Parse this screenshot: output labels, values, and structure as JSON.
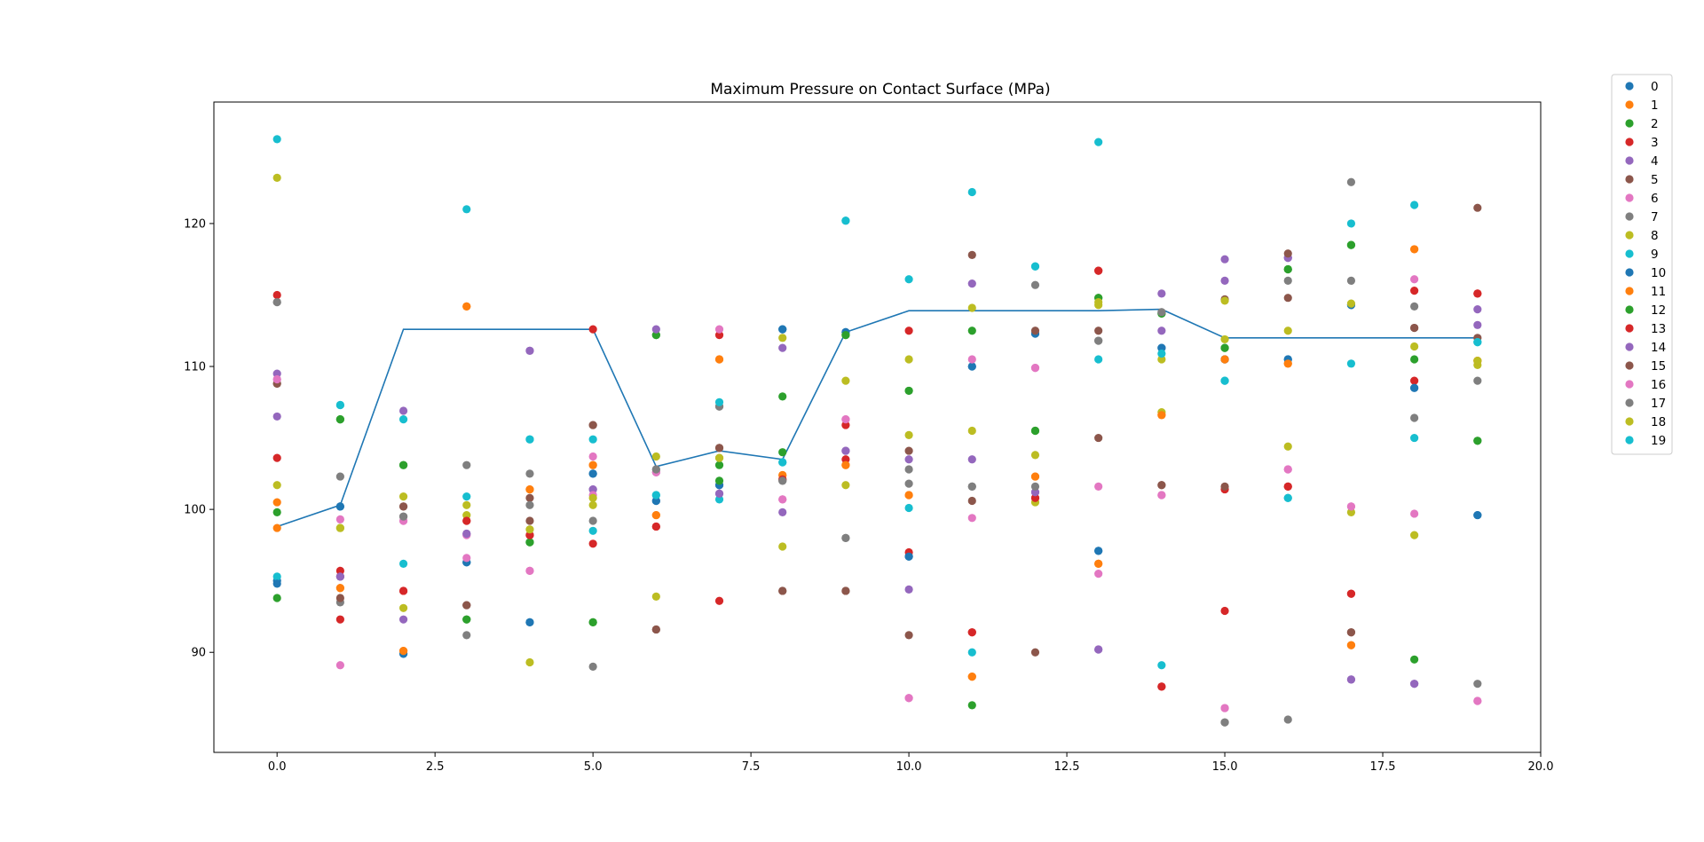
{
  "chart_data": {
    "type": "scatter",
    "title": "Maximum Pressure on Contact Surface (MPa)",
    "xlabel": "",
    "ylabel": "",
    "xlim": [
      -1.0,
      20.0
    ],
    "ylim": [
      83.0,
      128.5
    ],
    "x_ticks": [
      0.0,
      2.5,
      5.0,
      7.5,
      10.0,
      12.5,
      15.0,
      17.5,
      20.0
    ],
    "x_tick_labels": [
      "0.0",
      "2.5",
      "5.0",
      "7.5",
      "10.0",
      "12.5",
      "15.0",
      "17.5",
      "20.0"
    ],
    "y_ticks": [
      90,
      100,
      110,
      120
    ],
    "y_tick_labels": [
      "90",
      "100",
      "110",
      "120"
    ],
    "grid": false,
    "legend_position": "outside-top-right",
    "x": [
      0,
      1,
      2,
      3,
      4,
      5,
      6,
      7,
      8,
      9,
      10,
      11,
      12,
      13,
      14,
      15,
      16,
      17,
      18,
      19
    ],
    "line": {
      "name": "max",
      "color": "#1f77b4",
      "values": [
        98.8,
        100.3,
        112.6,
        112.6,
        112.6,
        112.6,
        103.0,
        104.1,
        103.5,
        112.4,
        113.9,
        113.9,
        113.9,
        113.9,
        114.0,
        112.0,
        112.0,
        112.0,
        112.0,
        112.0
      ]
    },
    "series": [
      {
        "name": "0",
        "color": "#1f77b4",
        "values": [
          95.0,
          100.2,
          89.9,
          96.3,
          92.1,
          102.5,
          100.6,
          101.7,
          112.6,
          112.4,
          96.7,
          110.0,
          112.3,
          97.1,
          111.3,
          110.5,
          110.5,
          114.3,
          108.5,
          99.6
        ]
      },
      {
        "name": "1",
        "color": "#ff7f0e",
        "values": [
          100.5,
          94.5,
          90.1,
          114.2,
          101.4,
          103.1,
          99.6,
          110.5,
          102.4,
          103.1,
          101.0,
          88.3,
          102.3,
          96.2,
          106.6,
          110.5,
          110.2,
          90.5,
          118.2,
          110.4
        ]
      },
      {
        "name": "2",
        "color": "#2ca02c",
        "values": [
          93.8,
          106.3,
          103.1,
          92.3,
          97.7,
          92.1,
          112.2,
          103.1,
          107.9,
          112.2,
          108.3,
          86.3,
          105.5,
          114.8,
          113.7,
          111.3,
          116.8,
          118.5,
          110.5,
          104.8
        ]
      },
      {
        "name": "3",
        "color": "#d62728",
        "values": [
          103.6,
          92.3,
          94.3,
          99.2,
          98.2,
          97.6,
          98.8,
          112.2,
          102.1,
          103.5,
          97.0,
          91.4,
          100.8,
          116.7,
          87.6,
          101.4,
          101.6,
          94.1,
          109.0,
          115.1
        ]
      },
      {
        "name": "4",
        "color": "#9467bd",
        "values": [
          106.5,
          95.3,
          92.3,
          98.3,
          111.1,
          101.4,
          102.6,
          101.1,
          99.8,
          104.1,
          94.4,
          103.5,
          101.2,
          90.2,
          112.5,
          117.5,
          117.6,
          88.1,
          87.8,
          112.9
        ]
      },
      {
        "name": "5",
        "color": "#8c564b",
        "values": [
          108.8,
          95.3,
          100.2,
          93.3,
          100.8,
          105.9,
          91.6,
          104.3,
          94.3,
          94.3,
          91.2,
          117.8,
          90.0,
          105.0,
          101.7,
          114.7,
          114.8,
          91.4,
          112.7,
          112.0
        ]
      },
      {
        "name": "6",
        "color": "#e377c2",
        "values": [
          109.1,
          99.3,
          99.2,
          98.2,
          95.7,
          103.7,
          102.6,
          101.7,
          100.7,
          106.3,
          86.8,
          99.4,
          109.9,
          95.5,
          101.0,
          86.1,
          102.8,
          100.2,
          99.7,
          86.6
        ]
      },
      {
        "name": "7",
        "color": "#7f7f7f",
        "values": [
          114.5,
          93.5,
          99.5,
          91.2,
          100.3,
          99.2,
          102.8,
          107.2,
          102.0,
          98.0,
          101.8,
          101.6,
          115.7,
          111.8,
          113.8,
          85.1,
          116.0,
          122.9,
          114.2,
          109.0
        ]
      },
      {
        "name": "8",
        "color": "#bcbd22",
        "values": [
          123.2,
          98.7,
          93.1,
          99.6,
          89.3,
          100.3,
          93.9,
          103.6,
          97.4,
          101.7,
          105.2,
          105.5,
          100.5,
          114.3,
          106.8,
          111.9,
          104.4,
          99.8,
          98.2,
          110.1
        ]
      },
      {
        "name": "9",
        "color": "#17becf",
        "values": [
          95.3,
          107.3,
          96.2,
          100.9,
          104.9,
          98.5,
          101.0,
          100.7,
          103.3,
          120.2,
          100.1,
          90.0,
          117.0,
          110.5,
          89.1,
          109.0,
          100.8,
          110.2,
          105.0,
          111.7
        ]
      },
      {
        "name": "10",
        "color": "#1f77b4",
        "values": [
          94.8,
          100.2,
          89.9,
          96.3,
          92.1,
          102.5,
          100.6,
          101.7,
          112.6,
          112.4,
          96.7,
          110.0,
          112.3,
          97.1,
          111.3,
          110.5,
          110.5,
          114.3,
          108.5,
          99.6
        ]
      },
      {
        "name": "11",
        "color": "#ff7f0e",
        "values": [
          98.7,
          94.5,
          90.1,
          114.2,
          101.4,
          103.1,
          99.6,
          110.5,
          102.4,
          103.1,
          101.0,
          88.3,
          102.3,
          96.2,
          106.6,
          110.5,
          110.2,
          90.5,
          118.2,
          110.4
        ]
      },
      {
        "name": "12",
        "color": "#2ca02c",
        "values": [
          99.8,
          106.3,
          103.1,
          92.3,
          97.7,
          92.1,
          112.2,
          102.0,
          104.0,
          112.2,
          108.3,
          112.5,
          105.5,
          114.8,
          113.7,
          111.3,
          116.8,
          118.5,
          89.5,
          104.8
        ]
      },
      {
        "name": "13",
        "color": "#d62728",
        "values": [
          115.0,
          95.7,
          94.3,
          99.2,
          98.2,
          112.6,
          98.8,
          93.6,
          102.1,
          105.9,
          112.5,
          91.4,
          100.8,
          116.7,
          87.6,
          92.9,
          101.6,
          94.1,
          115.3,
          115.1
        ]
      },
      {
        "name": "14",
        "color": "#9467bd",
        "values": [
          109.5,
          95.3,
          106.9,
          98.3,
          111.1,
          101.4,
          112.6,
          101.1,
          111.3,
          104.1,
          103.5,
          115.8,
          101.2,
          90.2,
          115.1,
          116.0,
          117.6,
          88.1,
          87.8,
          114.0
        ]
      },
      {
        "name": "15",
        "color": "#8c564b",
        "values": [
          108.8,
          93.8,
          100.2,
          93.3,
          99.2,
          105.9,
          91.6,
          104.3,
          94.3,
          94.3,
          104.1,
          100.6,
          112.5,
          112.5,
          101.7,
          101.6,
          117.9,
          91.4,
          112.7,
          121.1
        ]
      },
      {
        "name": "16",
        "color": "#e377c2",
        "values": [
          109.1,
          89.1,
          99.2,
          96.6,
          95.7,
          101.0,
          102.6,
          112.6,
          100.7,
          106.3,
          86.8,
          110.5,
          109.9,
          101.6,
          101.0,
          86.1,
          102.8,
          100.2,
          116.1,
          86.6
        ]
      },
      {
        "name": "17",
        "color": "#7f7f7f",
        "values": [
          114.5,
          102.3,
          99.5,
          103.1,
          102.5,
          89.0,
          102.8,
          107.2,
          102.0,
          98.0,
          102.8,
          101.6,
          101.6,
          111.8,
          113.8,
          85.1,
          85.3,
          116.0,
          106.4,
          87.8
        ]
      },
      {
        "name": "18",
        "color": "#bcbd22",
        "values": [
          101.7,
          98.7,
          100.9,
          100.3,
          98.6,
          100.8,
          103.7,
          103.6,
          112.0,
          109.0,
          110.5,
          114.1,
          103.8,
          114.5,
          110.5,
          114.6,
          112.5,
          114.4,
          111.4,
          110.4
        ]
      },
      {
        "name": "19",
        "color": "#17becf",
        "values": [
          125.9,
          107.3,
          106.3,
          121.0,
          104.9,
          104.9,
          101.0,
          107.5,
          103.3,
          120.2,
          116.1,
          122.2,
          117.0,
          125.7,
          110.9,
          109.0,
          100.8,
          120.0,
          121.3,
          111.7
        ]
      }
    ]
  }
}
